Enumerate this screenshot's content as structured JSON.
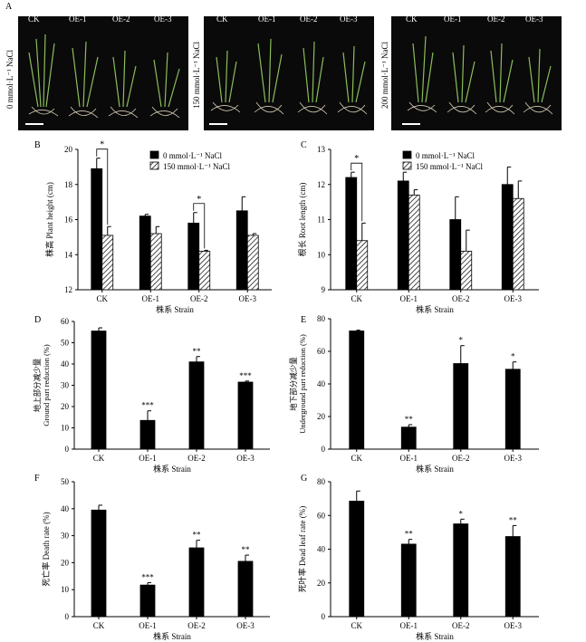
{
  "panel_a": {
    "letter": "A",
    "strains": [
      "CK",
      "OE-1",
      "OE-2",
      "OE-3"
    ],
    "conditions": [
      {
        "label": "0 mmol·L⁻¹ NaCl"
      },
      {
        "label": "150 mmol·L⁻¹ NaCl"
      },
      {
        "label": "200 mmol·L⁻¹ NaCl"
      }
    ]
  },
  "chart_data": [
    {
      "panel": "B",
      "type": "bar",
      "categories": [
        "CK",
        "OE-1",
        "OE-2",
        "OE-3"
      ],
      "series": [
        {
          "name": "0 mmol·L⁻¹ NaCl",
          "values": [
            18.9,
            16.2,
            15.8,
            16.5
          ],
          "errors": [
            0.6,
            0.1,
            0.6,
            0.8
          ],
          "fill": "#000000"
        },
        {
          "name": "150 mmol·L⁻¹ NaCl",
          "values": [
            15.1,
            15.2,
            14.2,
            15.1
          ],
          "errors": [
            0.5,
            0.4,
            0.05,
            0.1
          ],
          "fill": "hatch"
        }
      ],
      "ylabel": "株高 Plant height (cm)",
      "xlabel": "株系 Strain",
      "ylim": [
        12,
        20
      ],
      "yticks": [
        12,
        14,
        16,
        18,
        20
      ],
      "sig": [
        {
          "index": 0,
          "text": "*"
        },
        {
          "index": 2,
          "text": "*"
        }
      ]
    },
    {
      "panel": "C",
      "type": "bar",
      "categories": [
        "CK",
        "OE-1",
        "OE-2",
        "OE-3"
      ],
      "series": [
        {
          "name": "0 mmol·L⁻¹ NaCl",
          "values": [
            12.2,
            12.1,
            11.0,
            12.0
          ],
          "errors": [
            0.15,
            0.25,
            0.65,
            0.5
          ],
          "fill": "#000000"
        },
        {
          "name": "150 mmol·L⁻¹ NaCl",
          "values": [
            10.4,
            11.7,
            10.1,
            11.6
          ],
          "errors": [
            0.5,
            0.15,
            0.6,
            0.5
          ],
          "fill": "hatch"
        }
      ],
      "ylabel": "根长 Root length (cm)",
      "xlabel": "株系 Strain",
      "ylim": [
        9,
        13
      ],
      "yticks": [
        9,
        10,
        11,
        12,
        13
      ],
      "sig": [
        {
          "index": 0,
          "text": "*"
        }
      ]
    },
    {
      "panel": "D",
      "type": "bar",
      "categories": [
        "CK",
        "OE-1",
        "OE-2",
        "OE-3"
      ],
      "series": [
        {
          "name": "",
          "values": [
            55.5,
            13.5,
            41,
            31.5
          ],
          "errors": [
            1.5,
            4.5,
            2.5,
            0.5
          ],
          "fill": "#000000"
        }
      ],
      "ylabel_lines": [
        "地上部分减少量",
        "Ground part reduction (%)"
      ],
      "xlabel": "株系 Strain",
      "ylim": [
        0,
        60
      ],
      "yticks": [
        0,
        10,
        20,
        30,
        40,
        50,
        60
      ],
      "stars": [
        "",
        "***",
        "**",
        "***"
      ]
    },
    {
      "panel": "E",
      "type": "bar",
      "categories": [
        "CK",
        "OE-1",
        "OE-2",
        "OE-3"
      ],
      "series": [
        {
          "name": "",
          "values": [
            72.5,
            13.5,
            52.5,
            49
          ],
          "errors": [
            0.5,
            1.5,
            11,
            4.5
          ],
          "fill": "#000000"
        }
      ],
      "ylabel_lines": [
        "地下部分减少量",
        "Underground part reduction (%)"
      ],
      "xlabel": "株系 Strain",
      "ylim": [
        0,
        80
      ],
      "yticks": [
        0,
        20,
        40,
        60,
        80
      ],
      "stars": [
        "",
        "**",
        "*",
        "*"
      ]
    },
    {
      "panel": "F",
      "type": "bar",
      "categories": [
        "CK",
        "OE-1",
        "OE-2",
        "OE-3"
      ],
      "series": [
        {
          "name": "",
          "values": [
            39.5,
            11.7,
            25.5,
            20.5
          ],
          "errors": [
            1.8,
            0.9,
            2.8,
            2.3
          ],
          "fill": "#000000"
        }
      ],
      "ylabel": "死亡率 Death rate (%)",
      "xlabel": "株系 Strain",
      "ylim": [
        0,
        50
      ],
      "yticks": [
        0,
        10,
        20,
        30,
        40,
        50
      ],
      "stars": [
        "",
        "***",
        "**",
        "**"
      ]
    },
    {
      "panel": "G",
      "type": "bar",
      "categories": [
        "CK",
        "OE-1",
        "OE-2",
        "OE-3"
      ],
      "series": [
        {
          "name": "",
          "values": [
            68.5,
            43,
            55,
            47.5
          ],
          "errors": [
            6,
            2.8,
            2.8,
            6.5
          ],
          "fill": "#000000"
        }
      ],
      "ylabel": "死叶率 Dead leaf rate (%)",
      "xlabel": "株系 Strain",
      "ylim": [
        0,
        80
      ],
      "yticks": [
        0,
        20,
        40,
        60,
        80
      ],
      "stars": [
        "",
        "**",
        "*",
        "**"
      ]
    }
  ]
}
